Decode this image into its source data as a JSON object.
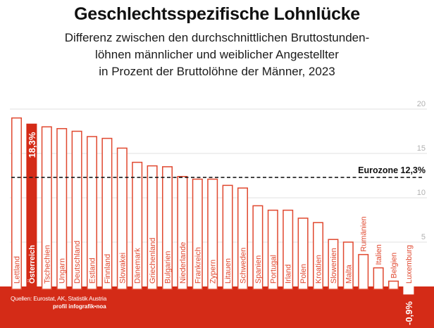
{
  "header": {
    "title": "Geschlechtsspezifische Lohnlücke",
    "subtitle_lines": [
      "Differenz zwischen den durchschnittlichen Bruttostunden-",
      "löhnen männlicher und weiblicher Angestellter",
      "in Prozent der Bruttolöhne der Männer, 2023"
    ]
  },
  "footer": {
    "source": "Quellen: Eurostat, AK, Statistik Austria",
    "credit": "profil infografik•noa"
  },
  "colors": {
    "accent": "#d42b17",
    "bar_outline": "#e0482f",
    "grid": "#e2e2e2",
    "reference": "#1a1a1a"
  },
  "chart_data": {
    "type": "bar",
    "title": "Geschlechtsspezifische Lohnlücke",
    "xlabel": "",
    "ylabel": "",
    "ylim": [
      0,
      20
    ],
    "yticks": [
      "5",
      "10",
      "15",
      "20"
    ],
    "grid": true,
    "categories": [
      "Lettland",
      "Österreich",
      "Tschechien",
      "Ungarn",
      "Deutschland",
      "Estland",
      "Finnland",
      "Slowakei",
      "Dänemark",
      "Griechenland",
      "Bulgarien",
      "Niederlande",
      "Frankreich",
      "Zypern",
      "Litauen",
      "Schweden",
      "Spanien",
      "Portugal",
      "Irland",
      "Polen",
      "Kroatien",
      "Slowenien",
      "Malta",
      "Rumänien",
      "Italien",
      "Belgien",
      "Luxemburg"
    ],
    "values": [
      19.0,
      18.3,
      18.0,
      17.8,
      17.5,
      16.9,
      16.7,
      15.6,
      14.0,
      13.6,
      13.5,
      12.4,
      12.1,
      12.1,
      11.4,
      11.1,
      9.1,
      8.6,
      8.6,
      7.7,
      7.2,
      5.3,
      5.0,
      3.6,
      2.1,
      0.6,
      -0.9
    ],
    "highlight": "Österreich",
    "data_labels": {
      "Österreich": "18,3%",
      "Luxemburg": "-0,9%"
    },
    "reference_line": {
      "label": "Eurozone 12,3%",
      "value": 12.3
    }
  }
}
